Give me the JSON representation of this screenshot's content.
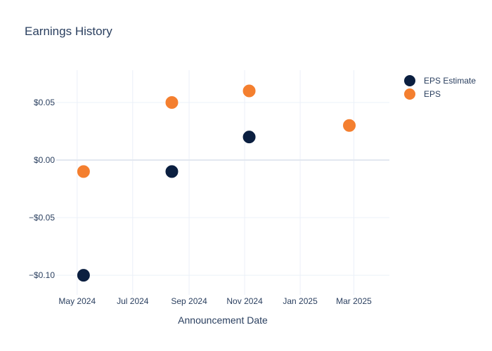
{
  "chart_data": {
    "type": "scatter",
    "title": "Earnings History",
    "xlabel": "Announcement Date",
    "ylabel": "",
    "x_range": [
      "2024-04-08",
      "2025-04-09"
    ],
    "ylim": [
      -0.117,
      0.078
    ],
    "x_ticks": [
      {
        "date": "2024-05-01",
        "label": "May 2024"
      },
      {
        "date": "2024-07-01",
        "label": "Jul 2024"
      },
      {
        "date": "2024-09-01",
        "label": "Sep 2024"
      },
      {
        "date": "2024-11-01",
        "label": "Nov 2024"
      },
      {
        "date": "2025-01-01",
        "label": "Jan 2025"
      },
      {
        "date": "2025-03-01",
        "label": "Mar 2025"
      }
    ],
    "y_ticks": [
      {
        "value": 0.05,
        "label": "$0.05"
      },
      {
        "value": 0.0,
        "label": "$0.00"
      },
      {
        "value": -0.05,
        "label": "−$0.05"
      },
      {
        "value": -0.1,
        "label": "−$0.10"
      }
    ],
    "grid": true,
    "legend_position": "top-right",
    "series": [
      {
        "name": "EPS Estimate",
        "color": "#0b1f40",
        "points": [
          {
            "x": "2024-05-08",
            "y": -0.1
          },
          {
            "x": "2024-08-13",
            "y": -0.01
          },
          {
            "x": "2024-11-06",
            "y": 0.02
          },
          {
            "x": "2025-02-24",
            "y": 0.03
          }
        ]
      },
      {
        "name": "EPS",
        "color": "#f47f2f",
        "points": [
          {
            "x": "2024-05-08",
            "y": -0.01
          },
          {
            "x": "2024-08-13",
            "y": 0.05
          },
          {
            "x": "2024-11-06",
            "y": 0.06
          },
          {
            "x": "2025-02-24",
            "y": 0.03
          }
        ]
      }
    ]
  }
}
